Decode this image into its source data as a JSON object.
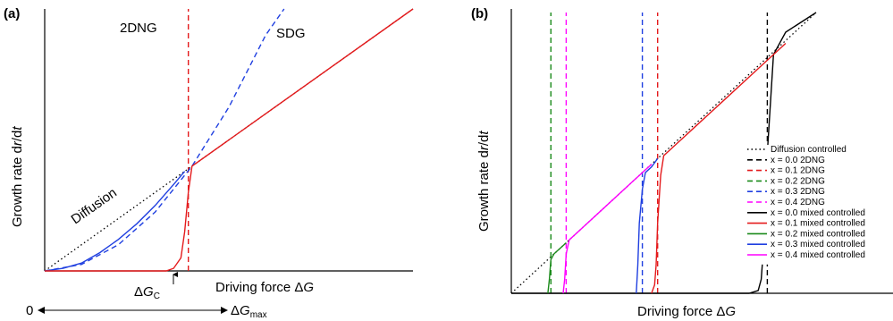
{
  "chart_data": [
    {
      "type": "line",
      "panel_label": "(a)",
      "xlabel": "Driving force ΔG",
      "ylabel": "Growth rate dr/dt",
      "x_range_arrow": {
        "start_label": "0",
        "end_label": "ΔGmax"
      },
      "threshold_label": "ΔGC",
      "xlim": [
        0,
        1
      ],
      "ylim": [
        0,
        1
      ],
      "series": [
        {
          "name": "Diffusion",
          "color": "#000000",
          "style": "dotted",
          "x": [
            0.0,
            1.0
          ],
          "y": [
            0.0,
            1.0
          ]
        },
        {
          "name": "2DNG",
          "color": "#e41a1c",
          "style": "dashed",
          "x": [
            0.39,
            0.39
          ],
          "y": [
            0.0,
            1.0
          ]
        },
        {
          "name": "SDG",
          "color": "#1f3fe0",
          "style": "dashed",
          "x": [
            0.0,
            0.1,
            0.2,
            0.3,
            0.4,
            0.5,
            0.6,
            0.65
          ],
          "y": [
            0.0,
            0.025,
            0.1,
            0.225,
            0.4,
            0.625,
            0.9,
            1.0
          ]
        },
        {
          "name": "",
          "color": "#1f3fe0",
          "style": "solid",
          "x": [
            0.0,
            0.05,
            0.1,
            0.15,
            0.2,
            0.25,
            0.3,
            0.35,
            0.38
          ],
          "y": [
            0.0,
            0.01,
            0.03,
            0.07,
            0.12,
            0.18,
            0.25,
            0.33,
            0.38
          ]
        },
        {
          "name": "",
          "color": "#e41a1c",
          "style": "solid",
          "x": [
            0.0,
            0.3,
            0.33,
            0.35,
            0.37,
            0.38,
            0.39,
            0.4,
            1.0
          ],
          "y": [
            0.0,
            0.0,
            0.0,
            0.01,
            0.05,
            0.15,
            0.3,
            0.4,
            1.0
          ]
        }
      ],
      "annotations": [
        "2DNG",
        "SDG",
        "Diffusion"
      ]
    },
    {
      "type": "line",
      "panel_label": "(b)",
      "xlabel": "Driving force ΔG",
      "ylabel": "Growth rate dr/dt",
      "xlim": [
        0,
        1
      ],
      "ylim": [
        0,
        1
      ],
      "legend": {
        "placement": "right",
        "entries": [
          {
            "label": "Diffusion controlled",
            "color": "#000000",
            "style": "dotted"
          },
          {
            "label": "x = 0.0  2DNG",
            "color": "#000000",
            "style": "dashed"
          },
          {
            "label": "x = 0.1  2DNG",
            "color": "#e41a1c",
            "style": "dashed"
          },
          {
            "label": "x = 0.2  2DNG",
            "color": "#1a8a1a",
            "style": "dashed"
          },
          {
            "label": "x = 0.3  2DNG",
            "color": "#1f3fe0",
            "style": "dashed"
          },
          {
            "label": "x = 0.4  2DNG",
            "color": "#ff00ff",
            "style": "dashed"
          },
          {
            "label": "x = 0.0  mixed controlled",
            "color": "#000000",
            "style": "solid"
          },
          {
            "label": "x = 0.1  mixed controlled",
            "color": "#e41a1c",
            "style": "solid"
          },
          {
            "label": "x = 0.2  mixed controlled",
            "color": "#1a8a1a",
            "style": "solid"
          },
          {
            "label": "x = 0.3  mixed controlled",
            "color": "#1f3fe0",
            "style": "solid"
          },
          {
            "label": "x = 0.4  mixed controlled",
            "color": "#ff00ff",
            "style": "solid"
          }
        ]
      },
      "series": [
        {
          "name": "Diffusion controlled",
          "color": "#000000",
          "style": "dotted",
          "x": [
            0.0,
            1.0
          ],
          "y": [
            0.0,
            1.0
          ]
        },
        {
          "name": "x = 0.0  2DNG",
          "color": "#000000",
          "style": "dashed",
          "x": [
            0.84,
            0.84
          ],
          "y": [
            0.0,
            1.0
          ]
        },
        {
          "name": "x = 0.1  2DNG",
          "color": "#e41a1c",
          "style": "dashed",
          "x": [
            0.48,
            0.48
          ],
          "y": [
            0.0,
            1.0
          ]
        },
        {
          "name": "x = 0.2  2DNG",
          "color": "#1a8a1a",
          "style": "dashed",
          "x": [
            0.13,
            0.13
          ],
          "y": [
            0.0,
            1.0
          ]
        },
        {
          "name": "x = 0.3  2DNG",
          "color": "#1f3fe0",
          "style": "dashed",
          "x": [
            0.43,
            0.43
          ],
          "y": [
            0.0,
            1.0
          ]
        },
        {
          "name": "x = 0.4  2DNG",
          "color": "#ff00ff",
          "style": "dashed",
          "x": [
            0.18,
            0.18
          ],
          "y": [
            0.0,
            1.0
          ]
        },
        {
          "name": "x = 0.0  mixed controlled",
          "color": "#000000",
          "style": "solid",
          "x": [
            0.0,
            0.78,
            0.81,
            0.82,
            0.83,
            0.84,
            0.86,
            0.9,
            1.0
          ],
          "y": [
            0.0,
            0.0,
            0.01,
            0.05,
            0.2,
            0.5,
            0.85,
            0.93,
            1.0
          ]
        },
        {
          "name": "x = 0.1  mixed controlled",
          "color": "#e41a1c",
          "style": "solid",
          "x": [
            0.46,
            0.47,
            0.475,
            0.48,
            0.49,
            0.5,
            0.6,
            0.7,
            0.8,
            0.9
          ],
          "y": [
            0.0,
            0.03,
            0.1,
            0.25,
            0.42,
            0.49,
            0.59,
            0.69,
            0.79,
            0.89
          ]
        },
        {
          "name": "x = 0.2  mixed controlled",
          "color": "#1a8a1a",
          "style": "solid",
          "x": [
            0.12,
            0.125,
            0.13,
            0.14,
            0.15,
            0.17,
            0.18
          ],
          "y": [
            0.0,
            0.05,
            0.12,
            0.14,
            0.15,
            0.17,
            0.18
          ]
        },
        {
          "name": "x = 0.3  mixed controlled",
          "color": "#1f3fe0",
          "style": "solid",
          "x": [
            0.41,
            0.415,
            0.42,
            0.43,
            0.44,
            0.46,
            0.48
          ],
          "y": [
            0.0,
            0.1,
            0.25,
            0.37,
            0.43,
            0.45,
            0.48
          ]
        },
        {
          "name": "x = 0.4  mixed controlled",
          "color": "#ff00ff",
          "style": "solid",
          "x": [
            0.17,
            0.175,
            0.18,
            0.19,
            0.2,
            0.3,
            0.4,
            0.46
          ],
          "y": [
            0.0,
            0.05,
            0.14,
            0.19,
            0.2,
            0.3,
            0.4,
            0.46
          ]
        }
      ]
    }
  ]
}
